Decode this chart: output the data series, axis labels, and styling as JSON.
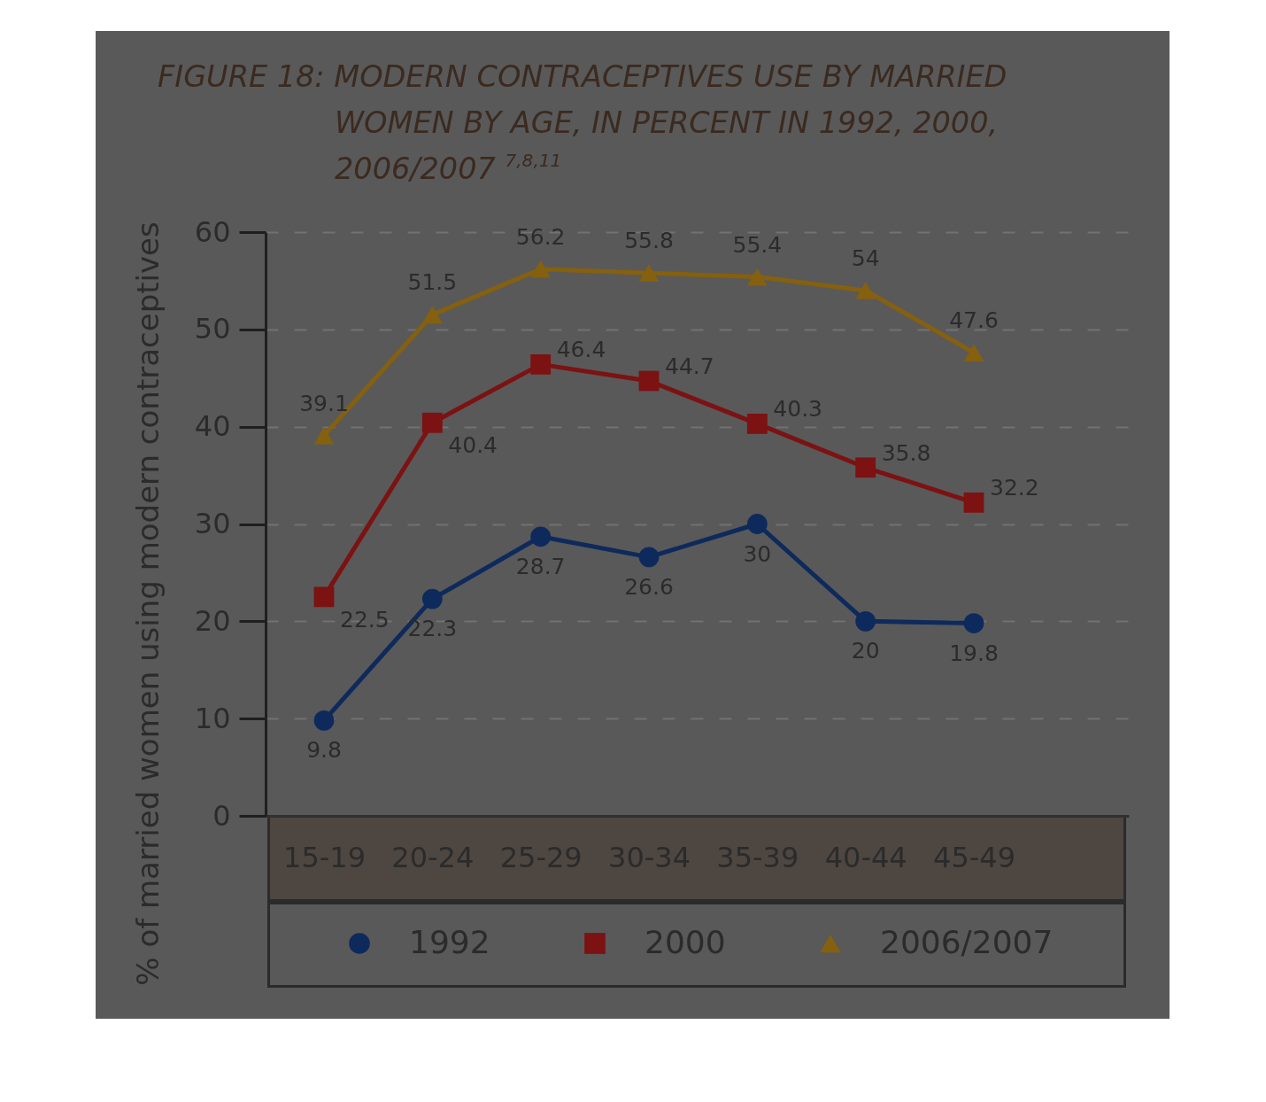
{
  "chart_data": {
    "type": "line",
    "title": "FIGURE 18: MODERN CONTRACEPTIVES USE BY MARRIED WOMEN BY AGE, IN PERCENT IN 1992, 2000, 2006/2007 $^{7,8,11}$",
    "ylabel": "% of married women using modern contraceptives",
    "categories": [
      "15-19",
      "20-24",
      "25-29",
      "30-34",
      "35-39",
      "40-44",
      "45-49"
    ],
    "series": [
      {
        "name": "1992",
        "color": "#0e2a5c",
        "marker": "circle",
        "values": [
          9.8,
          22.3,
          28.7,
          26.6,
          30,
          20,
          19.8
        ]
      },
      {
        "name": "2000",
        "color": "#7c1212",
        "marker": "square",
        "values": [
          22.5,
          40.4,
          46.4,
          44.7,
          40.3,
          35.8,
          32.2
        ]
      },
      {
        "name": "2006/2007",
        "color": "#85600f",
        "marker": "triangle",
        "values": [
          39.1,
          51.5,
          56.2,
          55.8,
          55.4,
          54,
          47.6
        ]
      }
    ],
    "ylim": [
      0,
      60
    ],
    "yticks": [
      0,
      10,
      20,
      30,
      40,
      50,
      60
    ],
    "grid": "y",
    "legend": "bottom",
    "data_labels": true,
    "line_style": "solid"
  }
}
